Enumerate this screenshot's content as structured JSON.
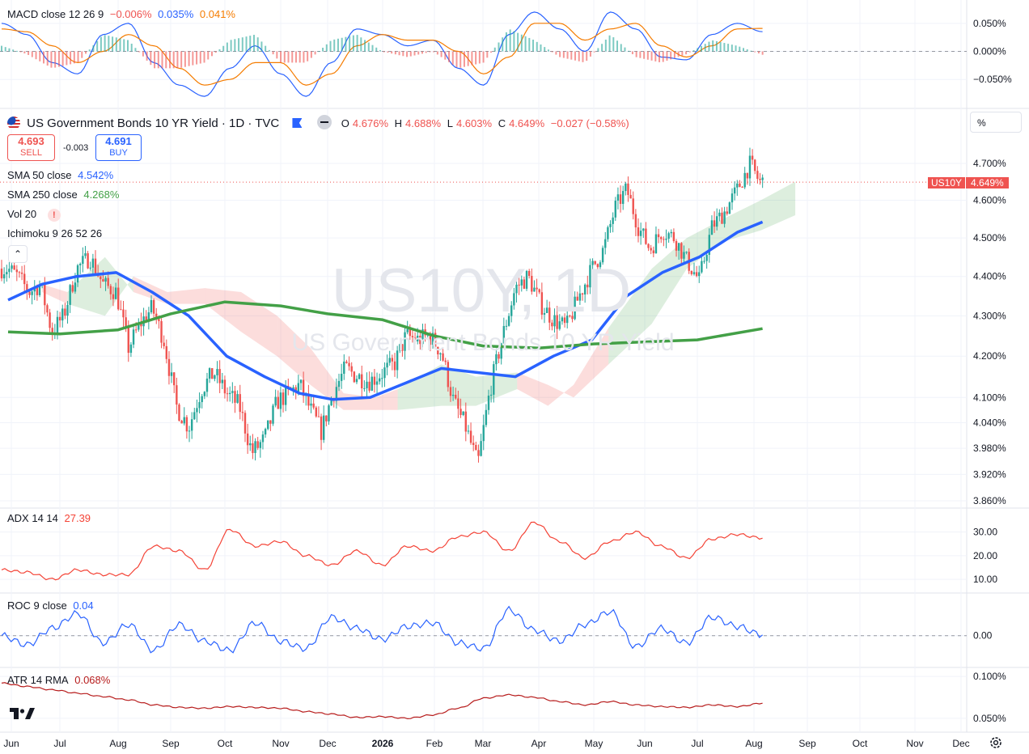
{
  "symbol": {
    "title": "US Government Bonds 10 YR Yield · 1D · TVC",
    "ticker_tag": "US10Y",
    "last": "4.649%",
    "ohlc": {
      "o_label": "O",
      "o": "4.676%",
      "h_label": "H",
      "h": "4.688%",
      "l_label": "L",
      "l": "4.603%",
      "c_label": "C",
      "c": "4.649%",
      "change": "−0.027 (−0.58%)"
    },
    "watermark_main": "US10Y, 1D",
    "watermark_sub": "US Government Bonds 10 YR Yield"
  },
  "trade": {
    "sell_price": "4.693",
    "sell_label": "SELL",
    "spread": "-0.003",
    "buy_price": "4.691",
    "buy_label": "BUY"
  },
  "unit_selector": "%",
  "indicators": {
    "macd": {
      "label": "MACD close 12 26 9",
      "v1": "−0.006%",
      "v2": "0.035%",
      "v3": "0.041%"
    },
    "sma50": {
      "label": "SMA 50 close",
      "value": "4.542%"
    },
    "sma250": {
      "label": "SMA 250 close",
      "value": "4.268%"
    },
    "vol": {
      "label": "Vol 20",
      "warning": "!"
    },
    "ichimoku": {
      "label": "Ichimoku 9 26 52 26"
    },
    "adx": {
      "label": "ADX 14 14",
      "value": "27.39"
    },
    "roc": {
      "label": "ROC 9 close",
      "value": "0.04"
    },
    "atr": {
      "label": "ATR 14 RMA",
      "value": "0.068%"
    }
  },
  "icons": {
    "flag": "us-flag-icon",
    "bookmark": "flag-bookmark-icon",
    "hide": "eye-off-icon",
    "logo": "tradingview-logo-icon",
    "settings": "gear-icon",
    "collapse": "chevron-up-icon"
  },
  "colors": {
    "up": "#26a69a",
    "down": "#ef5350",
    "sma50": "#2962ff",
    "sma250": "#43a047",
    "macd": "#2962ff",
    "signal": "#f57c00",
    "adx": "#f44336",
    "roc": "#2962ff",
    "atr": "#b71c1c"
  },
  "chart_data": [
    {
      "type": "line",
      "name": "price",
      "title": "US Government Bonds 10 YR Yield · 1D · TVC",
      "y_ticks": [
        "4.700%",
        "4.600%",
        "4.500%",
        "4.400%",
        "4.300%",
        "4.200%",
        "4.100%",
        "4.040%",
        "3.980%",
        "3.920%",
        "3.860%"
      ],
      "y_scale": "log",
      "ylim": [
        3.86,
        4.74
      ],
      "x_ticks": [
        "Jun",
        "Jul",
        "Aug",
        "Sep",
        "Oct",
        "Nov",
        "Dec",
        "2026",
        "Feb",
        "Mar",
        "Apr",
        "May",
        "Jun",
        "Jul",
        "Aug",
        "Sep",
        "Oct",
        "Nov",
        "Dec"
      ],
      "close_path": [
        [
          "2025-05-30",
          4.42
        ],
        [
          "2025-06-05",
          4.4
        ],
        [
          "2025-06-12",
          4.36
        ],
        [
          "2025-06-19",
          4.38
        ],
        [
          "2025-06-26",
          4.26
        ],
        [
          "2025-07-03",
          4.3
        ],
        [
          "2025-07-10",
          4.42
        ],
        [
          "2025-07-17",
          4.45
        ],
        [
          "2025-07-24",
          4.38
        ],
        [
          "2025-07-31",
          4.36
        ],
        [
          "2025-08-07",
          4.22
        ],
        [
          "2025-08-14",
          4.28
        ],
        [
          "2025-08-21",
          4.32
        ],
        [
          "2025-08-28",
          4.24
        ],
        [
          "2025-09-04",
          4.08
        ],
        [
          "2025-09-11",
          4.03
        ],
        [
          "2025-09-18",
          4.12
        ],
        [
          "2025-09-25",
          4.16
        ],
        [
          "2025-10-02",
          4.11
        ],
        [
          "2025-10-09",
          4.08
        ],
        [
          "2025-10-16",
          3.97
        ],
        [
          "2025-10-23",
          4.0
        ],
        [
          "2025-10-30",
          4.09
        ],
        [
          "2025-11-06",
          4.11
        ],
        [
          "2025-11-13",
          4.13
        ],
        [
          "2025-11-20",
          4.07
        ],
        [
          "2025-11-27",
          4.02
        ],
        [
          "2025-12-04",
          4.11
        ],
        [
          "2025-12-11",
          4.17
        ],
        [
          "2025-12-18",
          4.15
        ],
        [
          "2025-12-25",
          4.14
        ],
        [
          "2026-01-01",
          4.16
        ],
        [
          "2026-01-08",
          4.18
        ],
        [
          "2026-01-15",
          4.25
        ],
        [
          "2026-01-22",
          4.24
        ],
        [
          "2026-01-29",
          4.25
        ],
        [
          "2026-02-05",
          4.21
        ],
        [
          "2026-02-12",
          4.09
        ],
        [
          "2026-02-19",
          4.03
        ],
        [
          "2026-02-26",
          3.94
        ],
        [
          "2026-03-05",
          4.12
        ],
        [
          "2026-03-12",
          4.25
        ],
        [
          "2026-03-19",
          4.37
        ],
        [
          "2026-03-26",
          4.4
        ],
        [
          "2026-04-02",
          4.33
        ],
        [
          "2026-04-09",
          4.29
        ],
        [
          "2026-04-16",
          4.27
        ],
        [
          "2026-04-23",
          4.35
        ],
        [
          "2026-04-30",
          4.42
        ],
        [
          "2026-05-07",
          4.47
        ],
        [
          "2026-05-14",
          4.58
        ],
        [
          "2026-05-21",
          4.63
        ],
        [
          "2026-05-28",
          4.53
        ],
        [
          "2026-06-04",
          4.47
        ],
        [
          "2026-06-11",
          4.52
        ],
        [
          "2026-06-18",
          4.5
        ],
        [
          "2026-06-25",
          4.44
        ],
        [
          "2026-07-02",
          4.39
        ],
        [
          "2026-07-09",
          4.53
        ],
        [
          "2026-07-16",
          4.57
        ],
        [
          "2026-07-23",
          4.63
        ],
        [
          "2026-07-30",
          4.7
        ],
        [
          "2026-08-04",
          4.65
        ]
      ],
      "series": [
        {
          "name": "SMA 50 close",
          "last": 4.542,
          "path": [
            [
              "2025-05-30",
              4.34
            ],
            [
              "2025-06-20",
              4.38
            ],
            [
              "2025-07-10",
              4.4
            ],
            [
              "2025-07-31",
              4.41
            ],
            [
              "2025-08-21",
              4.36
            ],
            [
              "2025-09-11",
              4.3
            ],
            [
              "2025-10-02",
              4.2
            ],
            [
              "2025-10-23",
              4.15
            ],
            [
              "2025-11-13",
              4.11
            ],
            [
              "2025-12-04",
              4.095
            ],
            [
              "2025-12-25",
              4.1
            ],
            [
              "2026-01-15",
              4.135
            ],
            [
              "2026-02-05",
              4.17
            ],
            [
              "2026-02-26",
              4.16
            ],
            [
              "2026-03-19",
              4.15
            ],
            [
              "2026-04-09",
              4.2
            ],
            [
              "2026-04-30",
              4.24
            ],
            [
              "2026-05-21",
              4.35
            ],
            [
              "2026-06-11",
              4.41
            ],
            [
              "2026-07-02",
              4.45
            ],
            [
              "2026-07-23",
              4.515
            ],
            [
              "2026-08-06",
              4.542
            ]
          ]
        },
        {
          "name": "SMA 250 close",
          "last": 4.268,
          "path": [
            [
              "2025-05-30",
              4.26
            ],
            [
              "2025-07-01",
              4.255
            ],
            [
              "2025-08-01",
              4.265
            ],
            [
              "2025-09-01",
              4.305
            ],
            [
              "2025-10-01",
              4.335
            ],
            [
              "2025-11-01",
              4.325
            ],
            [
              "2025-12-01",
              4.305
            ],
            [
              "2026-01-01",
              4.29
            ],
            [
              "2026-02-01",
              4.25
            ],
            [
              "2026-03-01",
              4.225
            ],
            [
              "2026-04-01",
              4.22
            ],
            [
              "2026-05-01",
              4.23
            ],
            [
              "2026-06-01",
              4.235
            ],
            [
              "2026-07-01",
              4.24
            ],
            [
              "2026-08-06",
              4.268
            ]
          ]
        }
      ]
    },
    {
      "type": "bar",
      "name": "MACD",
      "title": "MACD close 12 26 9",
      "y_ticks": [
        "0.050%",
        "0.000%",
        "−0.050%"
      ],
      "ylim": [
        -0.09,
        0.08
      ],
      "series": [
        {
          "name": "macd_line",
          "values": [
            0.05,
            0.03,
            -0.02,
            -0.04,
            0.03,
            0.05,
            -0.02,
            -0.06,
            -0.08,
            -0.03,
            0.01,
            -0.04,
            -0.08,
            -0.02,
            0.04,
            0.03,
            0.01,
            0.02,
            -0.03,
            -0.06,
            0.03,
            0.07,
            0.04,
            0.0,
            0.07,
            0.04,
            -0.01,
            -0.015,
            0.03,
            0.05,
            0.035
          ]
        },
        {
          "name": "signal",
          "values": [
            0.04,
            0.035,
            0.01,
            -0.02,
            0.0,
            0.03,
            0.01,
            -0.03,
            -0.06,
            -0.05,
            -0.02,
            -0.02,
            -0.06,
            -0.04,
            0.01,
            0.03,
            0.02,
            0.02,
            0.0,
            -0.04,
            -0.01,
            0.05,
            0.05,
            0.02,
            0.04,
            0.05,
            0.01,
            -0.01,
            0.01,
            0.04,
            0.041
          ]
        }
      ]
    },
    {
      "type": "line",
      "name": "ADX",
      "title": "ADX 14 14",
      "y_ticks": [
        "30.00",
        "20.00",
        "10.00"
      ],
      "ylim": [
        8,
        36
      ],
      "series": [
        {
          "name": "ADX",
          "values": [
            14,
            13,
            10,
            14,
            12,
            12,
            24,
            22,
            14,
            31,
            24,
            26,
            20,
            16,
            22,
            16,
            24,
            22,
            28,
            30,
            22,
            34,
            26,
            19,
            26,
            30,
            24,
            19,
            27,
            29,
            27.39
          ]
        }
      ]
    },
    {
      "type": "line",
      "name": "ROC",
      "title": "ROC 9 close",
      "y_ticks": [
        "0.00"
      ],
      "ylim": [
        -1.5,
        2
      ],
      "series": [
        {
          "name": "ROC",
          "values": [
            0.0,
            -0.5,
            0.4,
            1.2,
            -0.4,
            0.6,
            -0.8,
            0.6,
            -0.3,
            -0.8,
            0.7,
            -0.3,
            -0.7,
            1.0,
            0.4,
            -0.2,
            0.5,
            0.7,
            -0.4,
            -0.7,
            1.4,
            0.3,
            -0.3,
            0.6,
            1.3,
            -0.6,
            0.4,
            -0.4,
            1.0,
            0.5,
            0.04
          ]
        }
      ]
    },
    {
      "type": "line",
      "name": "ATR",
      "title": "ATR 14 RMA",
      "y_ticks": [
        "0.100%",
        "0.050%"
      ],
      "ylim": [
        0.045,
        0.105
      ],
      "series": [
        {
          "name": "ATR",
          "values": [
            0.092,
            0.088,
            0.084,
            0.08,
            0.076,
            0.072,
            0.066,
            0.063,
            0.062,
            0.064,
            0.063,
            0.062,
            0.058,
            0.055,
            0.051,
            0.052,
            0.05,
            0.054,
            0.062,
            0.074,
            0.078,
            0.075,
            0.07,
            0.066,
            0.07,
            0.066,
            0.064,
            0.063,
            0.066,
            0.064,
            0.068
          ]
        }
      ]
    }
  ]
}
